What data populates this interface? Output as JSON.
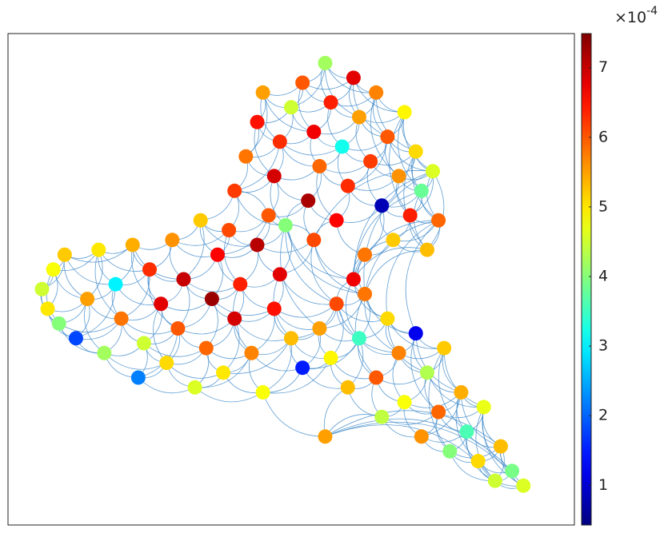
{
  "chart_data": {
    "type": "scatter",
    "colormap": "jet",
    "x": [
      6,
      7,
      8,
      10,
      9,
      12,
      14,
      16,
      17,
      19,
      20,
      22,
      23,
      24,
      25,
      27,
      28,
      29,
      30,
      31,
      33,
      34,
      35,
      36,
      37,
      38,
      39,
      40,
      41,
      43,
      44,
      45,
      46,
      47,
      48,
      50,
      52,
      40,
      42,
      44,
      45,
      47,
      48,
      50,
      52,
      53,
      54,
      55,
      56,
      57,
      58,
      59,
      60,
      61,
      62,
      63,
      64,
      65,
      66,
      67,
      68,
      69,
      70,
      71,
      72,
      73,
      74,
      75,
      76,
      54,
      49,
      61,
      55,
      57,
      58,
      60,
      62,
      63,
      65,
      66,
      67,
      69,
      70,
      72,
      73,
      74,
      76,
      77,
      78,
      80,
      81,
      83,
      84,
      86,
      87,
      89,
      91,
      56
    ],
    "y": [
      48,
      44,
      52,
      55,
      41,
      38,
      46,
      56,
      35,
      49,
      42,
      57,
      30,
      37,
      52,
      45,
      33,
      58,
      40,
      50,
      28,
      62,
      36,
      46,
      55,
      31,
      60,
      42,
      49,
      35,
      57,
      27,
      63,
      44,
      51,
      38,
      32,
      68,
      75,
      82,
      88,
      71,
      78,
      85,
      90,
      66,
      80,
      73,
      94,
      86,
      62,
      77,
      69,
      91,
      83,
      55,
      74,
      88,
      65,
      79,
      58,
      71,
      84,
      63,
      76,
      68,
      56,
      72,
      62,
      58,
      61,
      50,
      40,
      34,
      45,
      28,
      38,
      47,
      30,
      22,
      42,
      35,
      25,
      39,
      18,
      31,
      23,
      36,
      15,
      27,
      19,
      13,
      24,
      9,
      16,
      11,
      8,
      18
    ],
    "values": [
      4.5,
      5,
      4.8,
      5.2,
      4,
      1.8,
      5.5,
      5,
      4.2,
      3,
      5.8,
      5.4,
      2.2,
      4.5,
      6.3,
      6.8,
      5.1,
      5.6,
      6,
      7,
      4.6,
      5.2,
      5.9,
      7.3,
      6.6,
      5,
      6.1,
      6.9,
      6.4,
      5.7,
      7.1,
      4.8,
      6,
      6.5,
      6.8,
      5.3,
      1.5,
      6.2,
      5.8,
      6.5,
      5.5,
      6.9,
      6.3,
      4.5,
      6,
      7.2,
      6.7,
      5.9,
      4.2,
      6.4,
      6.6,
      3.2,
      6.3,
      6.8,
      5.5,
      5.8,
      6.2,
      5.7,
      0.8,
      6,
      5.2,
      5.6,
      4.9,
      6.4,
      5.1,
      3.8,
      5.3,
      4.6,
      5.9,
      6.1,
      4,
      6.7,
      5.5,
      4.9,
      6.1,
      5.3,
      3.5,
      5.8,
      6,
      4.4,
      5.1,
      5.7,
      4.8,
      1.2,
      5.6,
      4.3,
      5.9,
      5.2,
      4,
      5.4,
      3.6,
      5.1,
      4.7,
      4.5,
      5.3,
      3.9,
      4.6,
      5.5
    ],
    "xlim": [
      0,
      100
    ],
    "ylim": [
      0,
      100
    ],
    "clim": [
      0.43,
      7.49
    ],
    "cticks": [
      1,
      2,
      3,
      4,
      5,
      6,
      7
    ],
    "colorbar_multiplier": "×10",
    "colorbar_exponent": "-4"
  }
}
